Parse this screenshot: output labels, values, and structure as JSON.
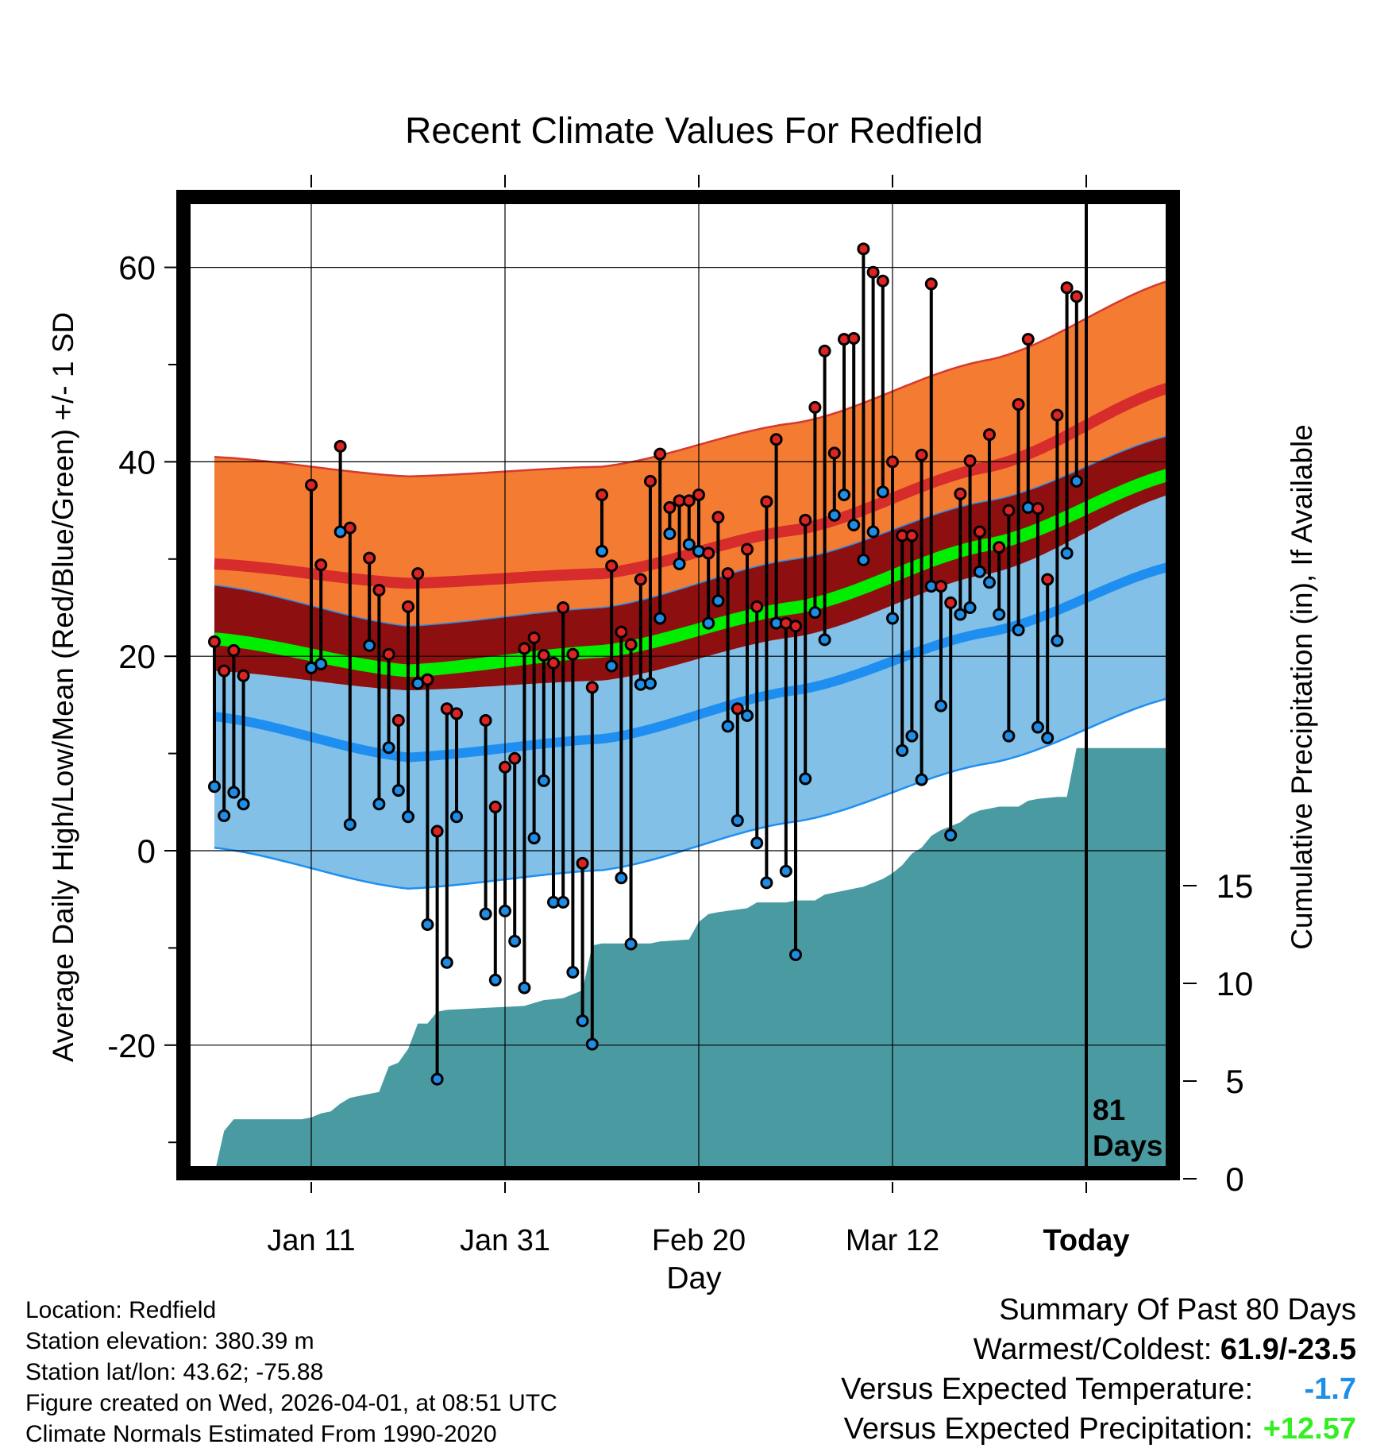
{
  "chart_data": {
    "type": "line",
    "title": "Recent Climate Values For Redfield",
    "xlabel": "Day",
    "ylabel": "Average Daily High/Low/Mean (Red/Blue/Green) +/- 1 SD",
    "y2label": "Cumulative Precipitation (in), If Available",
    "ylim": [
      -33,
      67
    ],
    "y_ticks": [
      "60",
      "40",
      "20",
      "0",
      "-20"
    ],
    "y2_ticks": [
      "15",
      "10",
      "5",
      "0"
    ],
    "x_ticks": [
      "Jan 11",
      "Jan 31",
      "Feb 20",
      "Mar 12",
      "Today"
    ],
    "today_label_1": "81",
    "today_label_2": "Days",
    "day_count": 100,
    "today_index": 90,
    "normals": {
      "high_mean_points": [
        [
          0,
          29.5
        ],
        [
          20,
          27.5
        ],
        [
          40,
          28.5
        ],
        [
          60,
          33
        ],
        [
          80,
          39.5
        ],
        [
          100,
          48
        ]
      ],
      "high_sd": 11,
      "low_mean_points": [
        [
          0,
          13.8
        ],
        [
          20,
          9.6
        ],
        [
          40,
          11.5
        ],
        [
          60,
          16.5
        ],
        [
          80,
          22.5
        ],
        [
          100,
          29.5
        ]
      ],
      "low_sd": 13.5,
      "mean_points": [
        [
          0,
          21.8
        ],
        [
          20,
          18.5
        ],
        [
          40,
          20.5
        ],
        [
          60,
          25
        ],
        [
          80,
          31.5
        ],
        [
          100,
          39
        ]
      ]
    },
    "highs": [
      21.5,
      18.5,
      20.6,
      18,
      null,
      null,
      null,
      null,
      null,
      null,
      37.6,
      29.4,
      null,
      41.6,
      33.2,
      null,
      30.1,
      26.8,
      20.2,
      13.4,
      25.1,
      28.5,
      17.6,
      2,
      14.6,
      14.1,
      null,
      null,
      13.4,
      4.5,
      8.6,
      9.5,
      20.8,
      21.9,
      20.1,
      19.3,
      25,
      20.2,
      -1.3,
      16.8,
      36.6,
      29.3,
      22.5,
      21.2,
      27.9,
      38,
      40.8,
      35.3,
      36,
      36,
      36.6,
      30.6,
      34.3,
      28.5,
      14.6,
      31,
      25.1,
      35.9,
      42.3,
      23.4,
      23.1,
      34,
      45.6,
      51.4,
      40.9,
      52.6,
      52.7,
      61.9,
      59.5,
      58.6,
      40,
      32.4,
      32.4,
      40.7,
      58.3,
      27.2,
      25.5,
      36.7,
      40.1,
      32.8,
      42.8,
      31.2,
      35,
      45.9,
      52.6,
      35.2,
      27.9,
      44.8,
      57.9,
      57
    ],
    "lows": [
      6.6,
      3.6,
      6,
      4.8,
      null,
      null,
      null,
      null,
      null,
      null,
      18.8,
      19.2,
      null,
      32.8,
      2.7,
      null,
      21.1,
      4.8,
      10.6,
      6.2,
      3.5,
      17.2,
      -7.6,
      -23.5,
      -11.5,
      3.5,
      null,
      null,
      -6.5,
      -13.3,
      -6.2,
      -9.3,
      -14.1,
      1.3,
      7.2,
      -5.3,
      -5.3,
      -12.5,
      -17.5,
      -19.9,
      30.8,
      19,
      -2.8,
      -9.6,
      17.1,
      17.2,
      23.9,
      32.6,
      29.5,
      31.5,
      30.8,
      23.4,
      25.7,
      12.8,
      3.1,
      13.9,
      0.8,
      -3.3,
      23.4,
      -2.1,
      -10.7,
      7.4,
      24.5,
      21.7,
      34.5,
      36.6,
      33.5,
      29.9,
      32.8,
      36.9,
      23.9,
      10.3,
      11.8,
      7.3,
      27.2,
      14.9,
      1.6,
      24.3,
      25,
      28.7,
      27.6,
      24.3,
      11.8,
      22.7,
      35.3,
      12.7,
      11.6,
      21.6,
      30.6,
      38
    ],
    "precip_cumulative": [
      [
        0,
        0
      ],
      [
        1,
        2.2
      ],
      [
        2,
        2.8
      ],
      [
        9,
        2.8
      ],
      [
        10,
        2.9
      ],
      [
        11,
        3.1
      ],
      [
        12,
        3.2
      ],
      [
        13,
        3.6
      ],
      [
        14,
        3.9
      ],
      [
        15,
        4.0
      ],
      [
        16,
        4.1
      ],
      [
        17,
        4.2
      ],
      [
        18,
        5.5
      ],
      [
        19,
        5.7
      ],
      [
        20,
        6.4
      ],
      [
        21,
        7.7
      ],
      [
        22,
        7.7
      ],
      [
        23,
        8.3
      ],
      [
        24,
        8.4
      ],
      [
        28,
        8.5
      ],
      [
        32,
        8.6
      ],
      [
        34,
        8.9
      ],
      [
        36,
        9.0
      ],
      [
        38,
        9.4
      ],
      [
        39,
        11.7
      ],
      [
        40,
        11.8
      ],
      [
        45,
        11.8
      ],
      [
        46,
        11.9
      ],
      [
        49,
        12.0
      ],
      [
        50,
        12.9
      ],
      [
        51,
        13.3
      ],
      [
        52,
        13.4
      ],
      [
        55,
        13.6
      ],
      [
        56,
        13.9
      ],
      [
        59,
        13.9
      ],
      [
        60,
        14.0
      ],
      [
        62,
        14.0
      ],
      [
        63,
        14.3
      ],
      [
        64,
        14.4
      ],
      [
        66,
        14.6
      ],
      [
        67,
        14.7
      ],
      [
        69,
        15.1
      ],
      [
        70,
        15.4
      ],
      [
        71,
        15.8
      ],
      [
        72,
        16.4
      ],
      [
        73,
        16.7
      ],
      [
        74,
        17.3
      ],
      [
        75,
        17.6
      ],
      [
        77,
        18.0
      ],
      [
        78,
        18.4
      ],
      [
        79,
        18.6
      ],
      [
        80,
        18.7
      ],
      [
        81,
        18.8
      ],
      [
        83,
        18.8
      ],
      [
        84,
        19.1
      ],
      [
        85,
        19.2
      ],
      [
        87,
        19.3
      ],
      [
        88,
        19.3
      ],
      [
        89,
        21.8
      ],
      [
        90,
        21.8
      ],
      [
        100,
        21.8
      ]
    ],
    "precip_max": 22,
    "colors": {
      "high_band": "#f47b32",
      "high_band_edge": "#d43a2f",
      "high_line": "#d62c2c",
      "mean_band": "#8e0f0f",
      "mean_line": "#00ee00",
      "low_band": "#82c0e7",
      "low_band_edge": "#1e8ff0",
      "low_line": "#1e8ff0",
      "precip": "#4a9aa2",
      "high_dot": "#dd2424",
      "low_dot": "#1f8de6"
    }
  },
  "info": {
    "location": "Location: Redfield",
    "elevation": "Station elevation: 380.39 m",
    "latlon": "Station lat/lon: 43.62; -75.88",
    "created": "Figure created on Wed, 2026-04-01, at 08:51 UTC",
    "normals": "Climate Normals Estimated From 1990-2020"
  },
  "summary": {
    "title": "Summary Of Past 80 Days",
    "warm_cold_label": "Warmest/Coldest:",
    "warm_cold_value": "61.9/-23.5",
    "temp_label": "Versus Expected Temperature:",
    "temp_value": "-1.7",
    "temp_color": "#1e8fe6",
    "precip_label": "Versus Expected Precipitation:",
    "precip_value": "+12.57",
    "precip_color": "#33ee22"
  }
}
